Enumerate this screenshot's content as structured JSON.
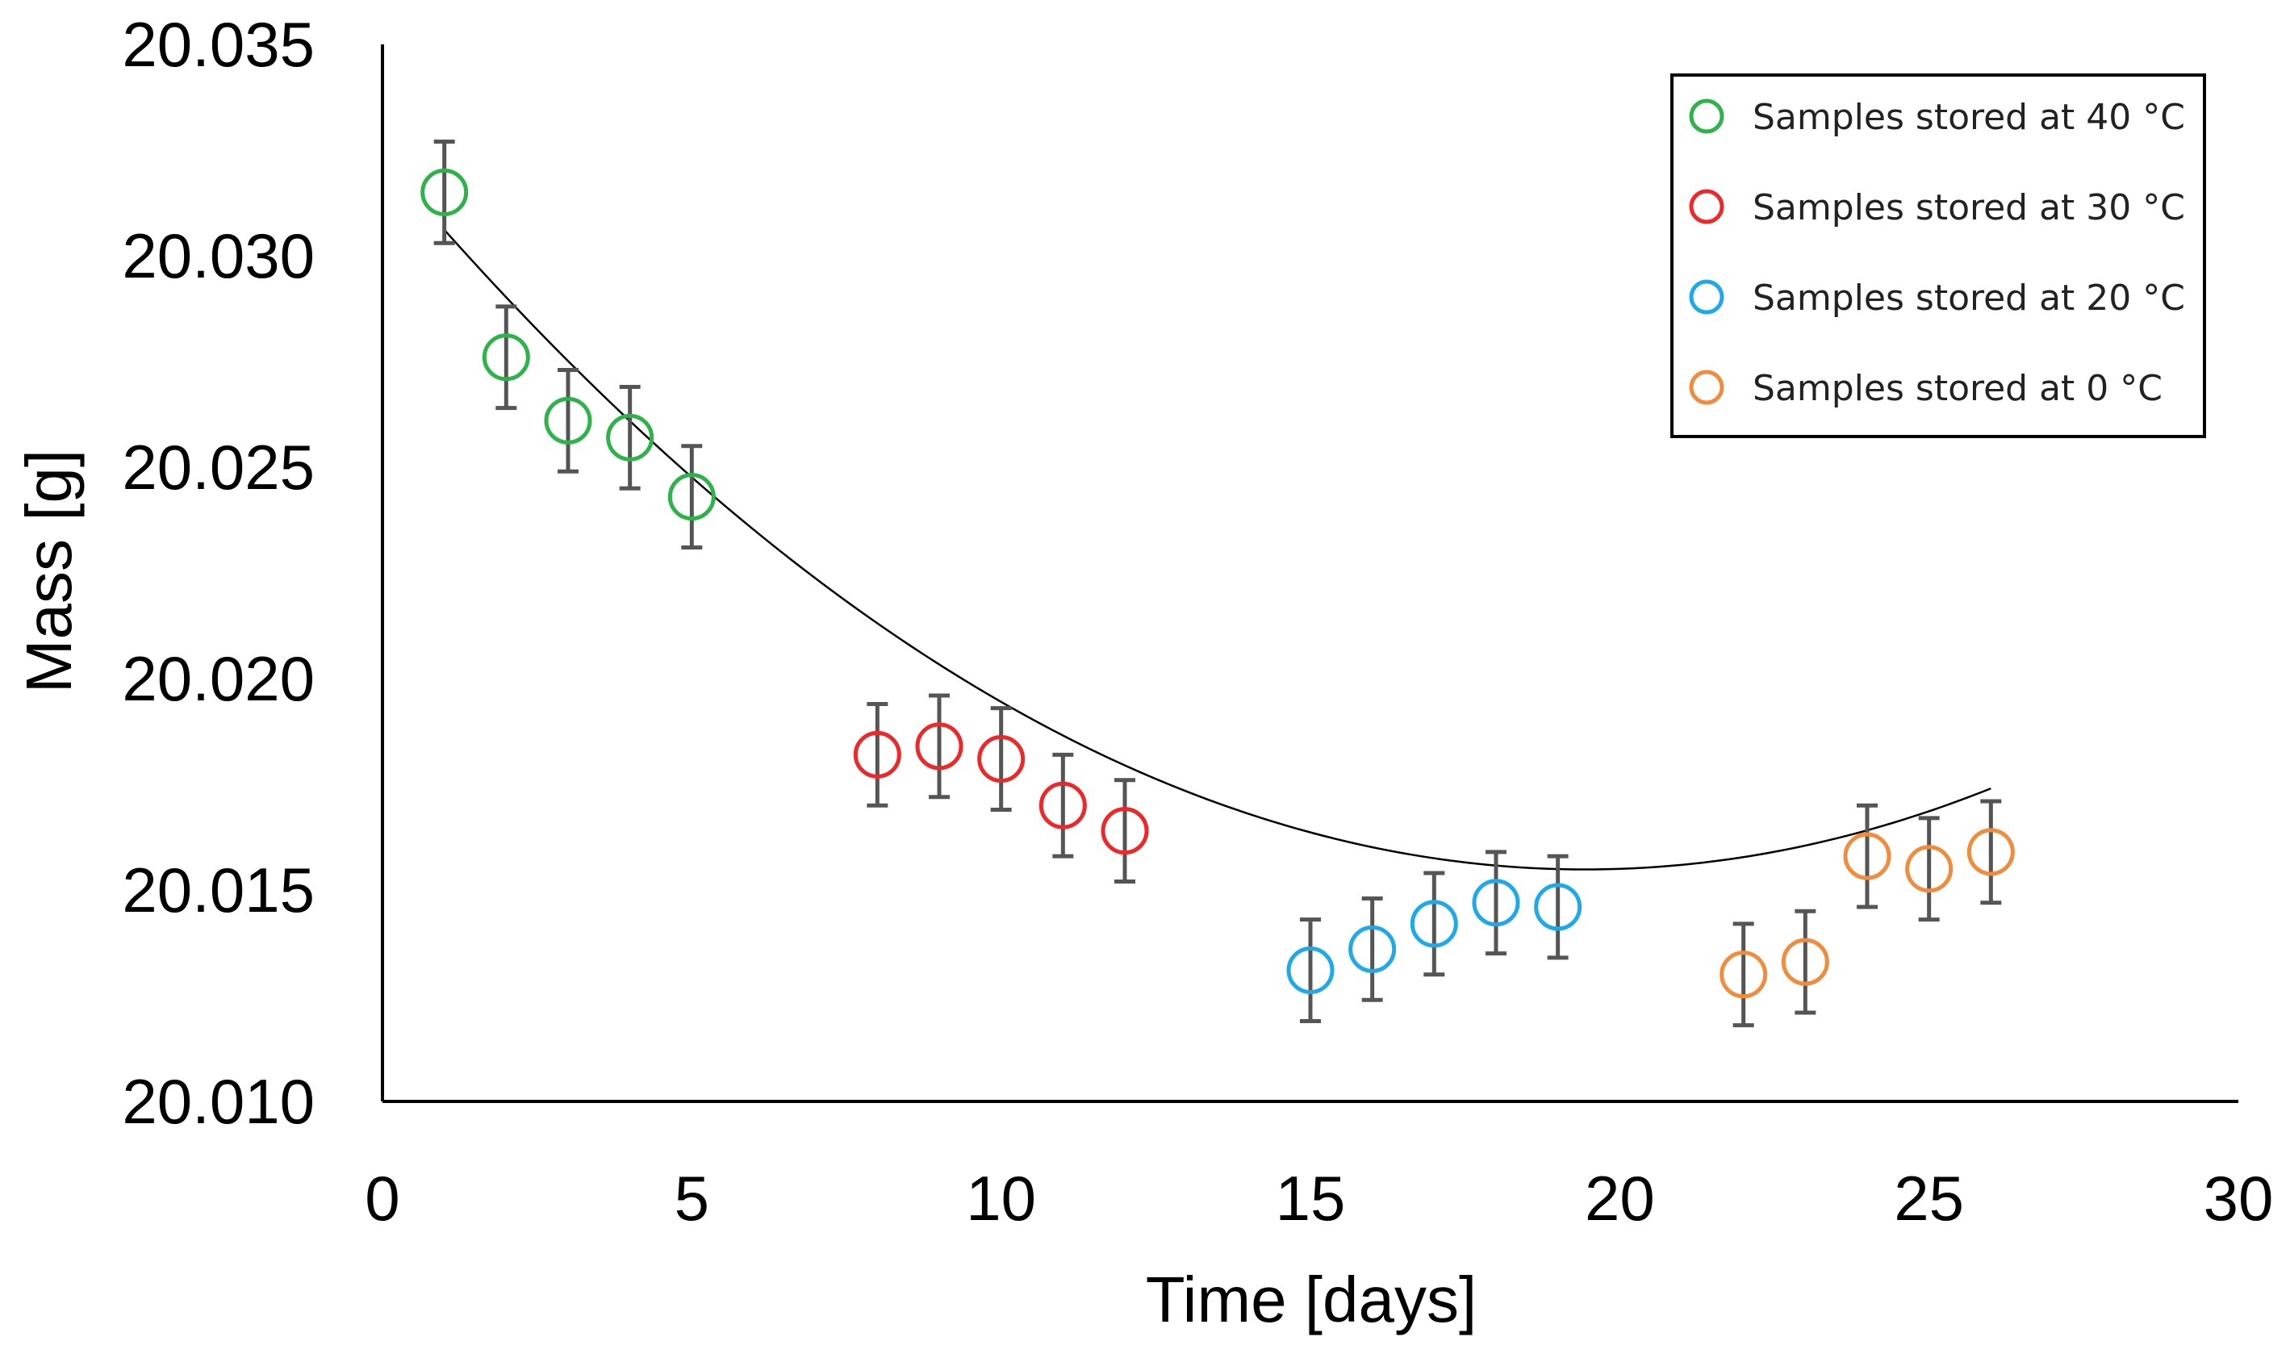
{
  "chart_data": {
    "type": "scatter",
    "title": "",
    "xlabel": "Time [days]",
    "ylabel": "Mass [g]",
    "xlim": [
      0,
      30
    ],
    "ylim": [
      20.01,
      20.035
    ],
    "xticks": [
      0,
      5,
      10,
      15,
      20,
      25,
      30
    ],
    "xtick_labels": [
      "0",
      "5",
      "10",
      "15",
      "20",
      "25",
      "30"
    ],
    "yticks": [
      20.01,
      20.015,
      20.02,
      20.025,
      20.03,
      20.035
    ],
    "ytick_labels": [
      "20.010",
      "20.015",
      "20.020",
      "20.025",
      "20.030",
      "20.035"
    ],
    "grid": false,
    "legend_position": "top-right",
    "error": 0.0012,
    "series": [
      {
        "name": "Samples stored at 40 °C",
        "color": "#2db34a",
        "points": [
          {
            "x": 1,
            "y": 20.0315
          },
          {
            "x": 2,
            "y": 20.0276
          },
          {
            "x": 3,
            "y": 20.0261
          },
          {
            "x": 4,
            "y": 20.0257
          },
          {
            "x": 5,
            "y": 20.0243
          }
        ]
      },
      {
        "name": "Samples stored at 30 °C",
        "color": "#ee2828",
        "points": [
          {
            "x": 8,
            "y": 20.0182
          },
          {
            "x": 9,
            "y": 20.0184
          },
          {
            "x": 10,
            "y": 20.0181
          },
          {
            "x": 11,
            "y": 20.017
          },
          {
            "x": 12,
            "y": 20.0164
          }
        ]
      },
      {
        "name": "Samples stored at 20 °C",
        "color": "#1eaaea",
        "points": [
          {
            "x": 15,
            "y": 20.0131
          },
          {
            "x": 16,
            "y": 20.0136
          },
          {
            "x": 17,
            "y": 20.0142
          },
          {
            "x": 18,
            "y": 20.0147
          },
          {
            "x": 19,
            "y": 20.0146
          }
        ]
      },
      {
        "name": "Samples stored at 0 °C",
        "color": "#f08c3c",
        "points": [
          {
            "x": 22,
            "y": 20.013
          },
          {
            "x": 23,
            "y": 20.0133
          },
          {
            "x": 24,
            "y": 20.0158
          },
          {
            "x": 25,
            "y": 20.0155
          },
          {
            "x": 26,
            "y": 20.0159
          }
        ]
      }
    ],
    "trendline": {
      "type": "polynomial",
      "order": 2,
      "color": "#000000",
      "x_range": [
        1,
        26
      ],
      "coefficients": [
        20.0323,
        -0.00173,
        4.45e-05
      ]
    }
  }
}
